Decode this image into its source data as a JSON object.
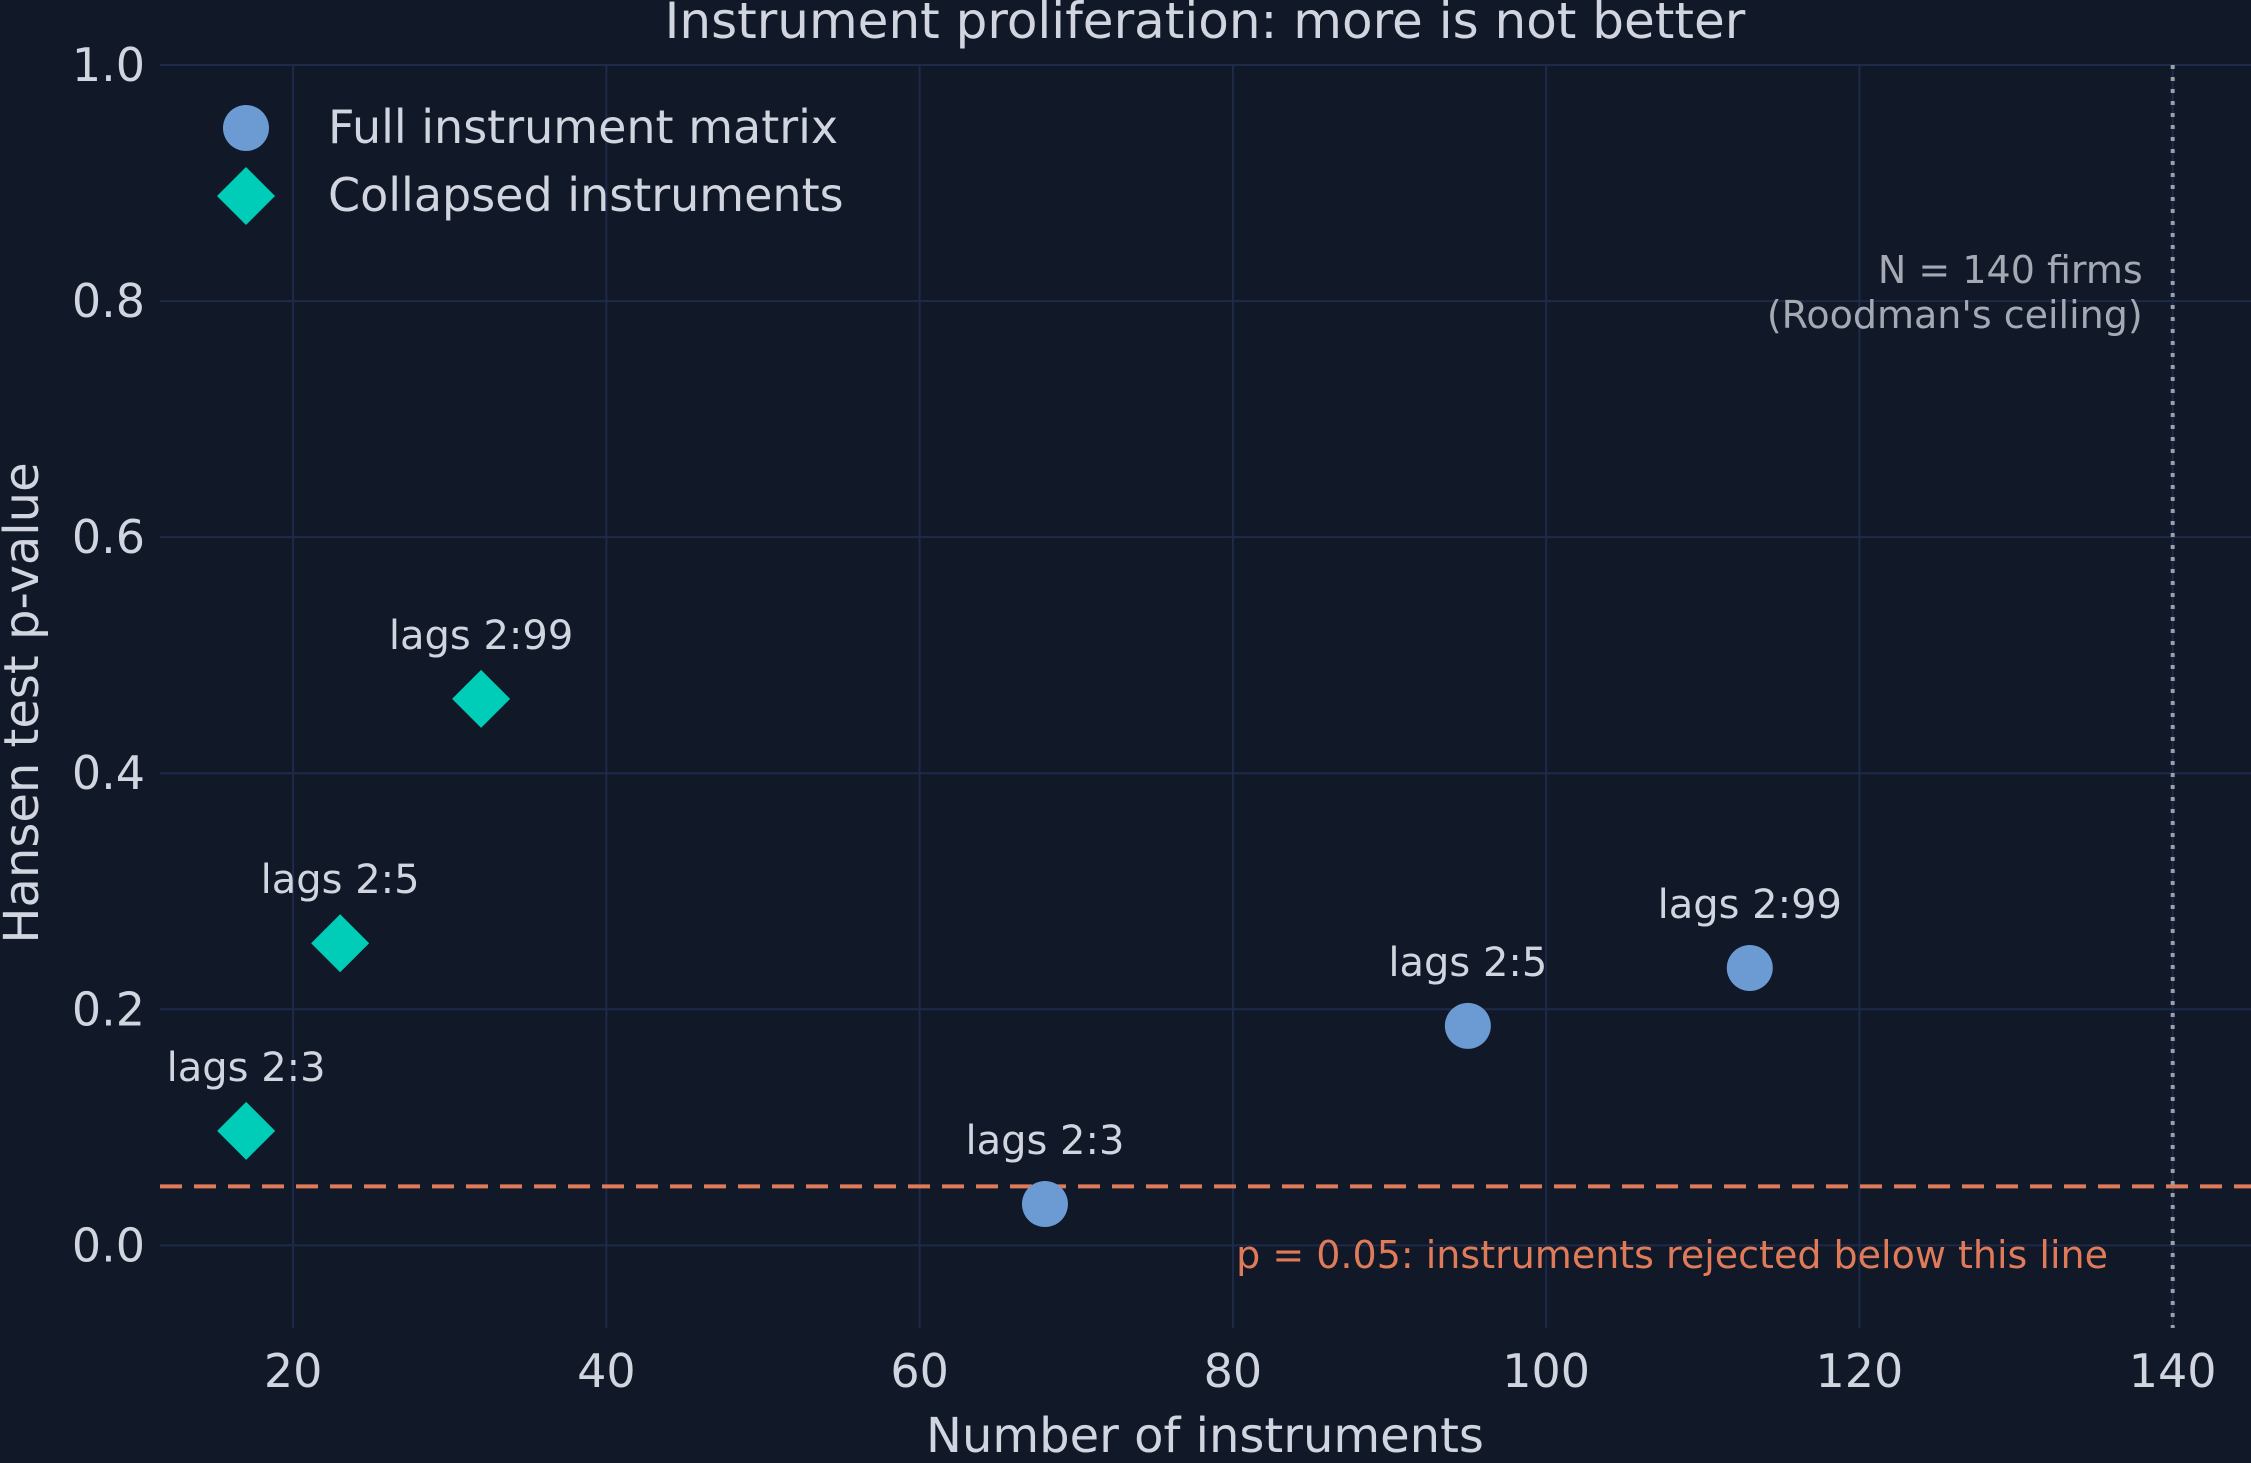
{
  "colors": {
    "background": "#111827",
    "grid": "#1e2a4a",
    "text": "#d1d5e0",
    "full_series": "#6b9bd2",
    "collapsed_series": "#00cdb8",
    "threshold": "#e07b5a",
    "ceiling_line": "#9aa0aa",
    "ceiling_text": "#a4a9b3"
  },
  "chart_data": {
    "type": "scatter",
    "title": "Instrument proliferation: more is not better",
    "xlabel": "Number of instruments",
    "ylabel": "Hansen test p-value",
    "xlim": [
      11.5,
      145
    ],
    "ylim": [
      -0.07,
      1.0
    ],
    "xticks": [
      20,
      40,
      60,
      80,
      100,
      120,
      140
    ],
    "yticks": [
      0.0,
      0.2,
      0.4,
      0.6,
      0.8,
      1.0
    ],
    "xtick_labels": [
      "20",
      "40",
      "60",
      "80",
      "100",
      "120",
      "140"
    ],
    "ytick_labels": [
      "0.0",
      "0.2",
      "0.4",
      "0.6",
      "0.8",
      "1.0"
    ],
    "grid": true,
    "legend_position": "top-left",
    "series": [
      {
        "name": "Full instrument matrix",
        "marker": "circle",
        "points": [
          {
            "x": 68,
            "y": 0.035,
            "label": "lags 2:3"
          },
          {
            "x": 95,
            "y": 0.186,
            "label": "lags 2:5"
          },
          {
            "x": 113,
            "y": 0.235,
            "label": "lags 2:99"
          }
        ]
      },
      {
        "name": "Collapsed instruments",
        "marker": "diamond",
        "points": [
          {
            "x": 17,
            "y": 0.097,
            "label": "lags 2:3"
          },
          {
            "x": 23,
            "y": 0.256,
            "label": "lags 2:5"
          },
          {
            "x": 32,
            "y": 0.463,
            "label": "lags 2:99"
          }
        ]
      }
    ],
    "reference_lines": {
      "horizontal": {
        "y": 0.05,
        "label": "p = 0.05: instruments rejected below this line"
      },
      "vertical": {
        "x": 140,
        "label_line1": "N = 140 firms",
        "label_line2": "(Roodman's ceiling)"
      }
    }
  }
}
